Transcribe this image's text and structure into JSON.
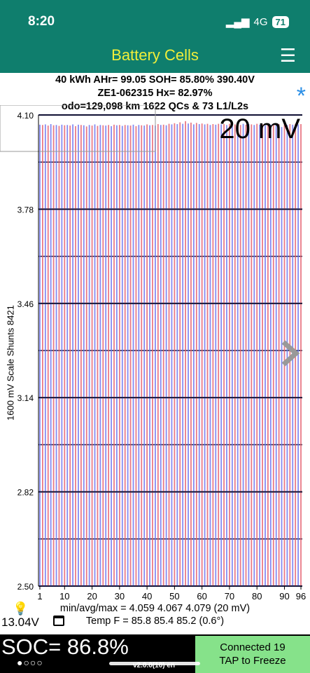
{
  "status": {
    "time": "8:20",
    "network": "4G",
    "battery": "71"
  },
  "header": {
    "title": "Battery Cells"
  },
  "info": {
    "line1": "40 kWh  AHr= 99.05  SOH= 85.80%   390.40V",
    "line2": "ZE1-062315   Hx= 82.97%",
    "line3": "odo=129,098 km 1622 QCs & 73 L1/L2s"
  },
  "chart": {
    "scale_label": "20 mV",
    "y_axis_title": "1600 mV Scale   Shunts 8421",
    "y_ticks": [
      "4.10",
      "3.78",
      "3.46",
      "3.14",
      "2.82",
      "2.50"
    ],
    "x_ticks": [
      "1",
      "10",
      "20",
      "30",
      "40",
      "50",
      "60",
      "70",
      "80",
      "90",
      "96"
    ]
  },
  "chart_data": {
    "type": "bar",
    "title": "",
    "xlabel": "",
    "ylabel": "1600 mV Scale   Shunts 8421",
    "ylim": [
      2.5,
      4.1
    ],
    "categories_count": 96,
    "min": 4.059,
    "avg": 4.067,
    "max": 4.079,
    "series": [
      {
        "values": [
          4.067,
          4.066,
          4.068,
          4.064,
          4.069,
          4.065,
          4.066,
          4.063,
          4.067,
          4.065,
          4.066,
          4.064,
          4.068,
          4.062,
          4.067,
          4.066,
          4.065,
          4.061,
          4.066,
          4.064,
          4.068,
          4.063,
          4.066,
          4.065,
          4.064,
          4.066,
          4.062,
          4.067,
          4.065,
          4.066,
          4.063,
          4.066,
          4.065,
          4.064,
          4.067,
          4.062,
          4.066,
          4.065,
          4.064,
          4.068,
          4.065,
          4.066,
          4.064,
          4.069,
          4.066,
          4.067,
          4.065,
          4.07,
          4.068,
          4.072,
          4.069,
          4.075,
          4.07,
          4.079,
          4.071,
          4.074,
          4.068,
          4.073,
          4.069,
          4.071,
          4.068,
          4.07,
          4.066,
          4.069,
          4.067,
          4.07,
          4.068,
          4.069,
          4.066,
          4.07,
          4.067,
          4.068,
          4.069,
          4.066,
          4.07,
          4.067,
          4.069,
          4.068,
          4.066,
          4.07,
          4.067,
          4.068,
          4.065,
          4.069,
          4.067,
          4.068,
          4.066,
          4.069,
          4.059,
          4.068,
          4.066,
          4.069,
          4.067,
          4.07,
          4.068,
          4.069
        ]
      }
    ],
    "colors": {
      "odd": "#6c74f0",
      "even": "#e5606f"
    }
  },
  "stats": {
    "line1": "min/avg/max = 4.059 4.067 4.079  (20 mV)",
    "line2": "Temp F = 85.8  85.4  85.2  (0.6°)"
  },
  "footer": {
    "voltage": "13.04V",
    "soc": "SOC= 86.8%",
    "page_dots": "●○○○",
    "version": "v2.0.0(10) en",
    "connect_line1": "Connected 19",
    "connect_line2": "TAP to Freeze"
  }
}
